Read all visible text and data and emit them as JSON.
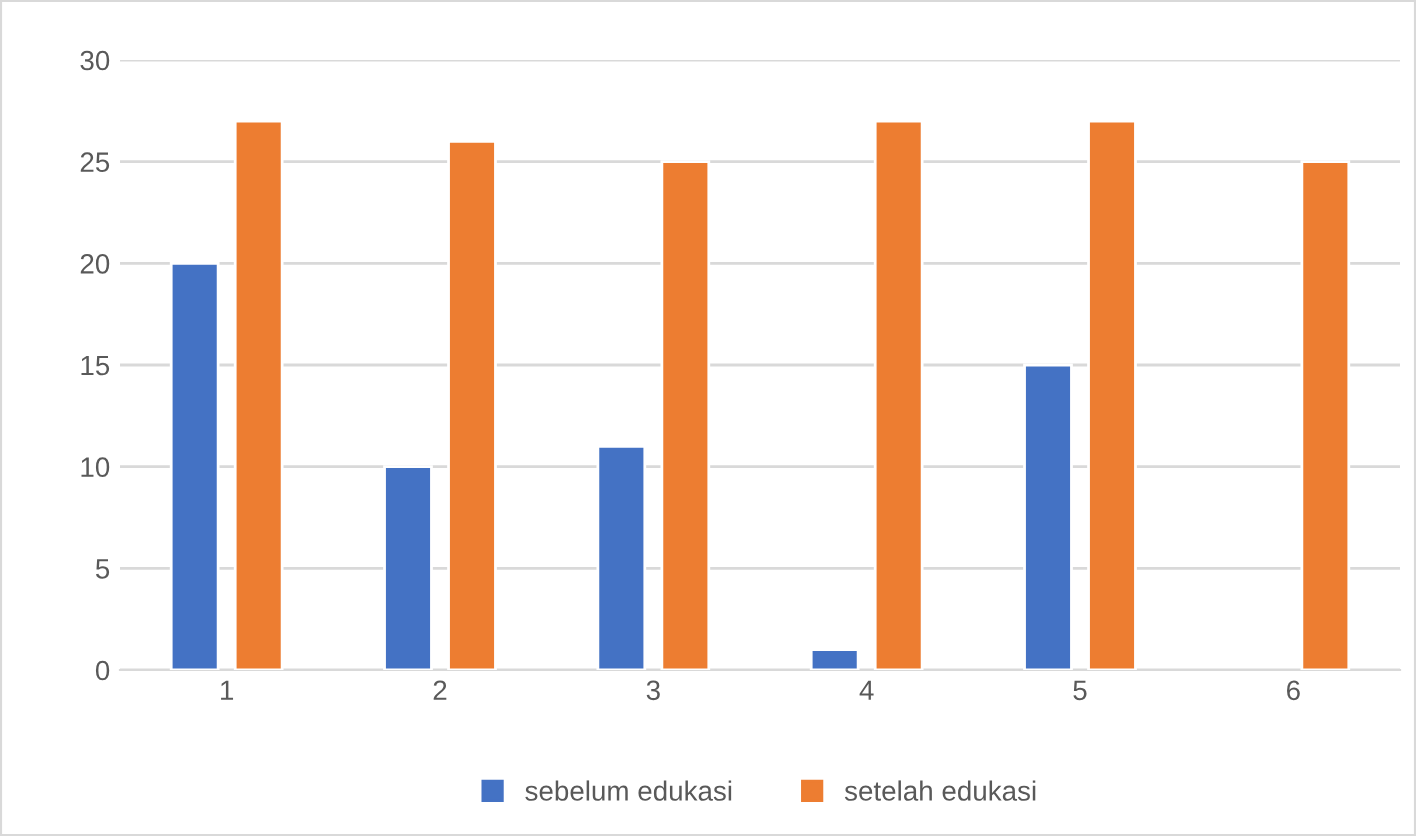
{
  "chart_data": {
    "type": "bar",
    "categories": [
      "1",
      "2",
      "3",
      "4",
      "5",
      "6"
    ],
    "series": [
      {
        "name": "sebelum edukasi",
        "color": "#4472c4",
        "values": [
          20,
          10,
          11,
          1,
          15,
          null
        ]
      },
      {
        "name": "setelah edukasi",
        "color": "#ed7d31",
        "values": [
          27,
          26,
          25,
          27,
          27,
          25
        ]
      }
    ],
    "ylim": [
      0,
      30
    ],
    "yticks": [
      0,
      5,
      10,
      15,
      20,
      25,
      30
    ],
    "grid": "y",
    "legend": "bottom"
  }
}
